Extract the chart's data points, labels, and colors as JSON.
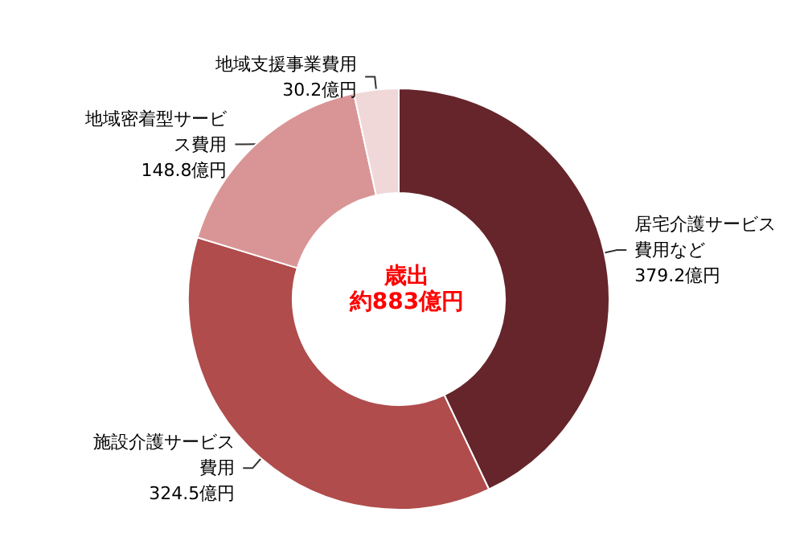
{
  "chart_data": {
    "type": "donut",
    "title": "歳出",
    "subtitle": "約883億円",
    "categories": [
      "居宅介護サービス費用など",
      "施設介護サービス費用",
      "地域密着型サービス費用",
      "地域支援事業費用"
    ],
    "values": [
      379.2,
      324.5,
      148.8,
      30.2
    ],
    "colors": [
      "#65252a",
      "#b04c4c",
      "#d99595",
      "#f0d7d8"
    ],
    "value_labels": [
      "379.2億円",
      "324.5億円",
      "148.8億円",
      "30.2億円"
    ],
    "legend": false
  }
}
